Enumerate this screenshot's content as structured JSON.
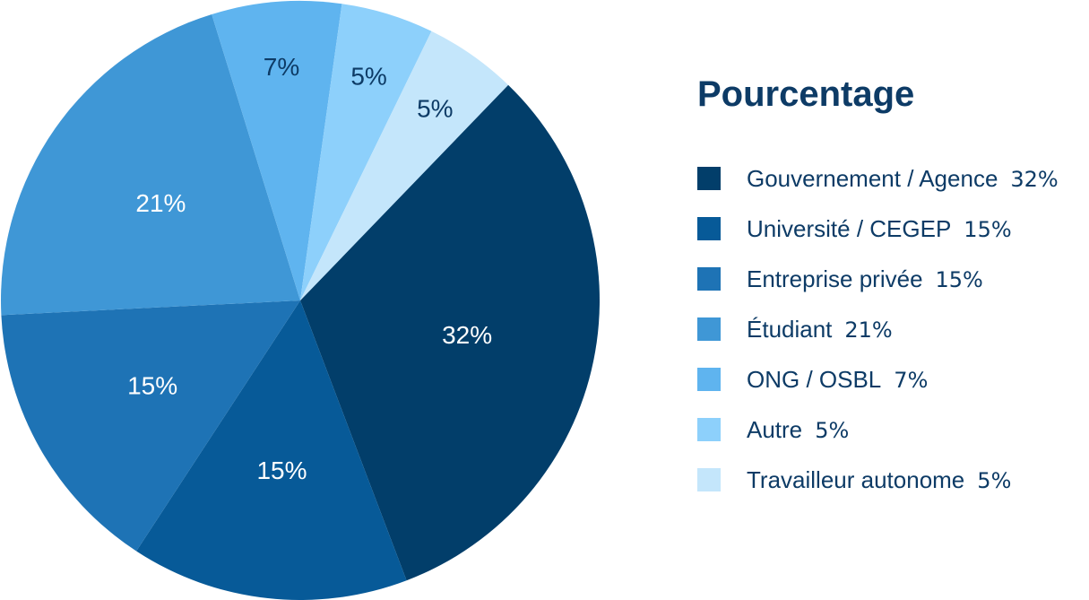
{
  "chart_data": {
    "type": "pie",
    "title": "",
    "legend": {
      "title": "Pourcentage",
      "placement": "right"
    },
    "slices": [
      {
        "label": "Gouvernement / Agence",
        "value": 32,
        "value_label": "32%",
        "color": "#023e6a",
        "text_color": "#ffffff"
      },
      {
        "label": "Université / CEGEP",
        "value": 15,
        "value_label": "15%",
        "color": "#075a98",
        "text_color": "#ffffff"
      },
      {
        "label": "Entreprise privée",
        "value": 15,
        "value_label": "15%",
        "color": "#1e73b5",
        "text_color": "#ffffff"
      },
      {
        "label": "Étudiant",
        "value": 21,
        "value_label": "21%",
        "color": "#3f97d6",
        "text_color": "#ffffff"
      },
      {
        "label": "ONG / OSBL",
        "value": 7,
        "value_label": "7%",
        "color": "#5fb4ef",
        "text_color": "#0d3b66"
      },
      {
        "label": "Autre",
        "value": 5,
        "value_label": "5%",
        "color": "#8dd0fb",
        "text_color": "#0d3b66"
      },
      {
        "label": "Travailleur autonome",
        "value": 5,
        "value_label": "5%",
        "color": "#c4e6fb",
        "text_color": "#0d3b66"
      }
    ]
  }
}
